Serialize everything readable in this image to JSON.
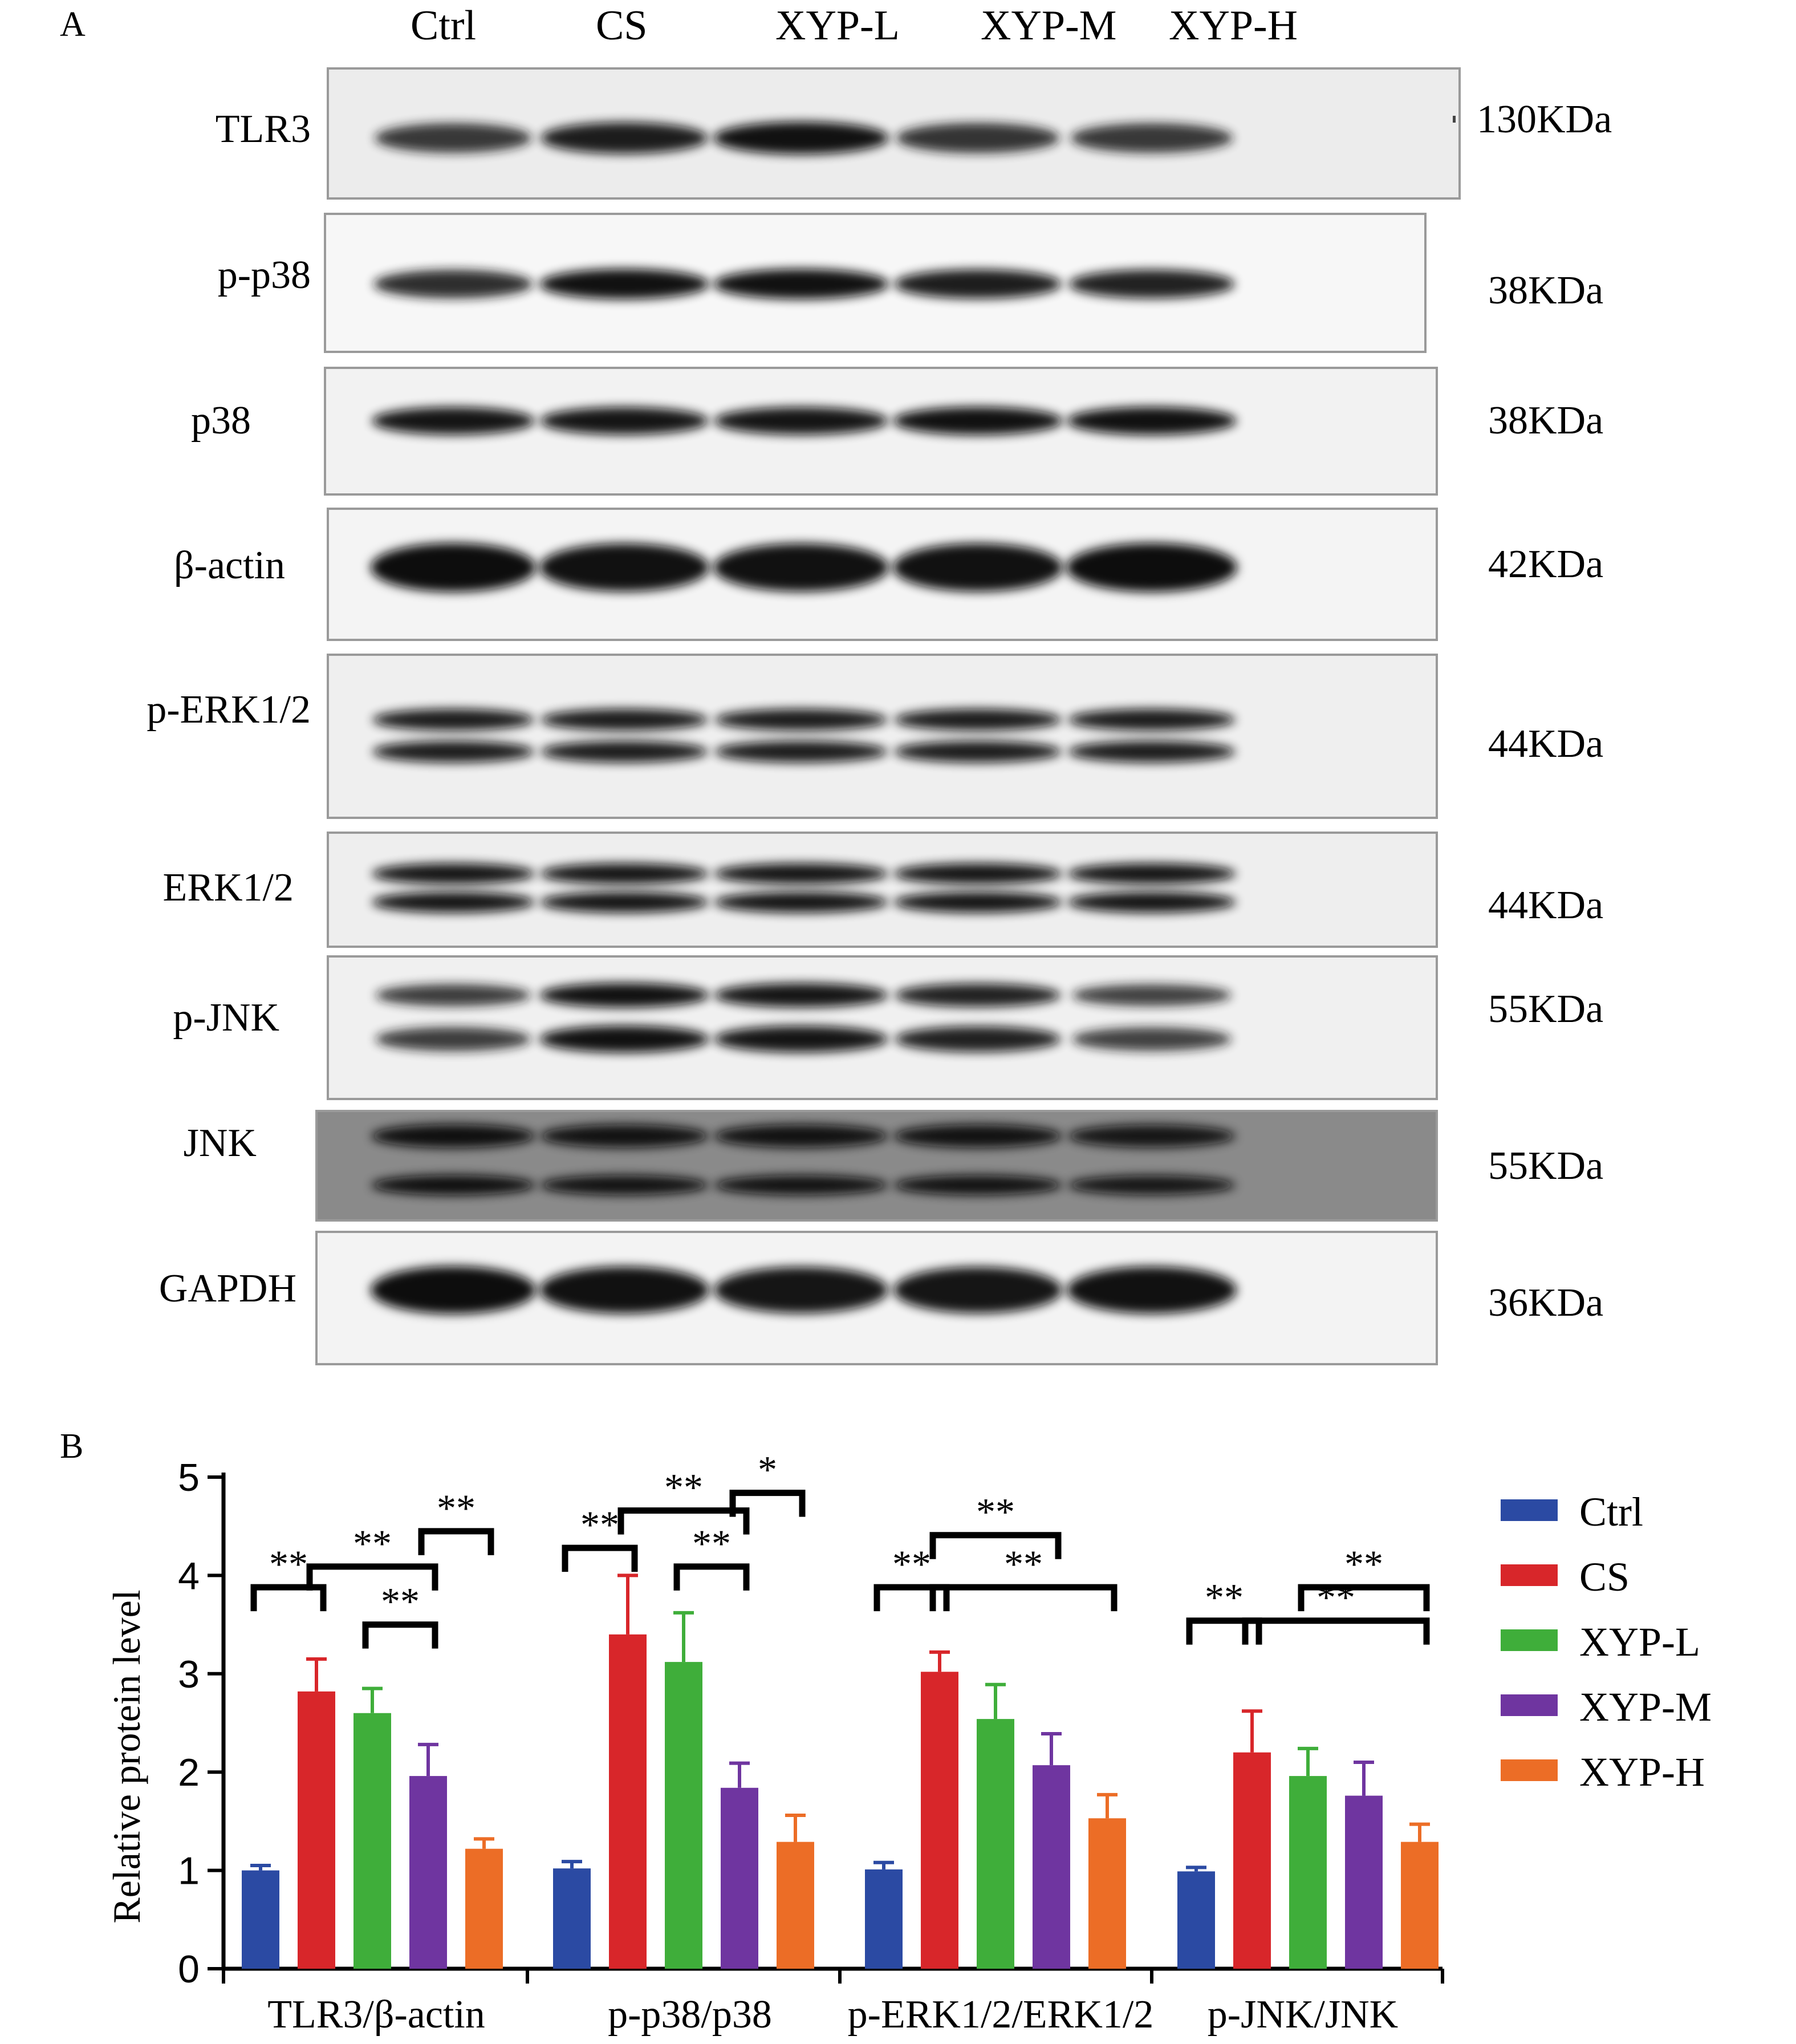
{
  "panel_a": {
    "label": "A",
    "lanes": [
      "Ctrl",
      "CS",
      "XYP-L",
      "XYP-M",
      "XYP-H"
    ],
    "rows": [
      {
        "protein": "TLR3",
        "kda": "130KDa"
      },
      {
        "protein": "p-p38",
        "kda": "38KDa"
      },
      {
        "protein": "p38",
        "kda": "38KDa"
      },
      {
        "protein": "β-actin",
        "kda": "42KDa"
      },
      {
        "protein": "p-ERK1/2",
        "kda": "44KDa"
      },
      {
        "protein": "ERK1/2",
        "kda": "44KDa"
      },
      {
        "protein": "p-JNK",
        "kda": "55KDa"
      },
      {
        "protein": "JNK",
        "kda": "55KDa"
      },
      {
        "protein": "GAPDH",
        "kda": "36KDa"
      }
    ]
  },
  "panel_b": {
    "label": "B"
  },
  "chart_data": {
    "type": "bar",
    "ylabel": "Relative protein level",
    "ylim": [
      0,
      5
    ],
    "yticks": [
      0,
      1,
      2,
      3,
      4,
      5
    ],
    "categories": [
      "TLR3/β-actin",
      "p-p38/p38",
      "p-ERK1/2/ERK1/2",
      "p-JNK/JNK"
    ],
    "legend_position": "right",
    "series": [
      {
        "name": "Ctrl",
        "color": "#2b4aa3",
        "values": [
          1.0,
          1.02,
          1.01,
          0.99
        ],
        "errors": [
          0.05,
          0.07,
          0.07,
          0.04
        ]
      },
      {
        "name": "CS",
        "color": "#d8262a",
        "values": [
          2.82,
          3.4,
          3.02,
          2.2
        ],
        "errors": [
          0.33,
          0.6,
          0.2,
          0.42
        ]
      },
      {
        "name": "XYP-L",
        "color": "#3fae3a",
        "values": [
          2.6,
          3.12,
          2.54,
          1.96
        ],
        "errors": [
          0.25,
          0.5,
          0.35,
          0.28
        ]
      },
      {
        "name": "XYP-M",
        "color": "#6f35a0",
        "values": [
          1.96,
          1.84,
          2.07,
          1.76
        ],
        "errors": [
          0.32,
          0.25,
          0.32,
          0.34
        ]
      },
      {
        "name": "XYP-H",
        "color": "#ec6d26",
        "values": [
          1.22,
          1.29,
          1.53,
          1.29
        ],
        "errors": [
          0.1,
          0.27,
          0.24,
          0.18
        ]
      }
    ],
    "significance": [
      {
        "group": 0,
        "from": 0,
        "to": 1,
        "label": "**",
        "y": 3.88
      },
      {
        "group": 0,
        "from": 1,
        "to": 3,
        "label": "**",
        "y": 4.09
      },
      {
        "group": 0,
        "from": 2,
        "to": 3,
        "label": "**",
        "y": 3.5
      },
      {
        "group": 0,
        "from": 3,
        "to": 4,
        "label": "**",
        "y": 4.45
      },
      {
        "group": 1,
        "from": 0,
        "to": 1,
        "label": "**",
        "y": 4.28
      },
      {
        "group": 1,
        "from": 1,
        "to": 3,
        "label": "**",
        "y": 4.66
      },
      {
        "group": 1,
        "from": 2,
        "to": 3,
        "label": "**",
        "y": 4.09
      },
      {
        "group": 1,
        "from": 3,
        "to": 4,
        "label": "*",
        "y": 4.84
      },
      {
        "group": 2,
        "from": 0,
        "to": 1,
        "label": "**",
        "y": 3.88
      },
      {
        "group": 2,
        "from": 1,
        "to": 4,
        "label": "**",
        "y": 3.88
      },
      {
        "group": 2,
        "from": 1,
        "to": 3,
        "label": "**",
        "y": 4.41
      },
      {
        "group": 3,
        "from": 0,
        "to": 1,
        "label": "**",
        "y": 3.54
      },
      {
        "group": 3,
        "from": 1,
        "to": 4,
        "label": "**",
        "y": 3.54
      },
      {
        "group": 3,
        "from": 2,
        "to": 4,
        "label": "**",
        "y": 3.88
      }
    ]
  }
}
